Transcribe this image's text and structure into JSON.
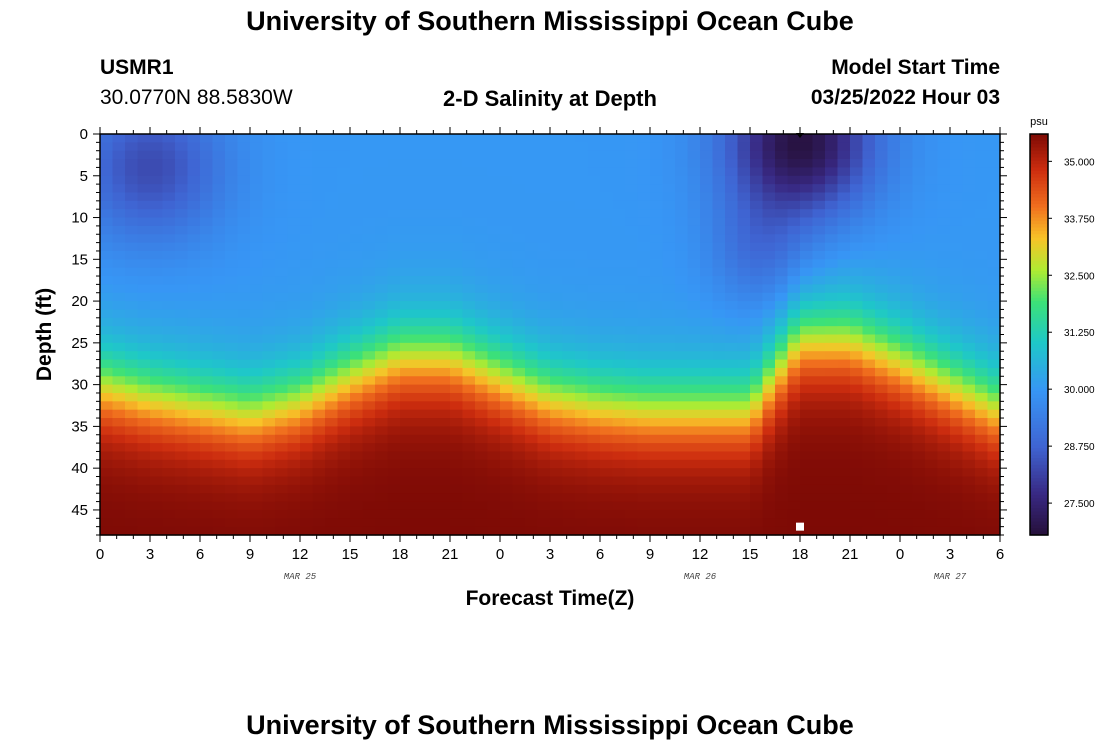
{
  "header": {
    "title": "University of Southern Mississippi Ocean Cube",
    "station": "USMR1",
    "coords": "30.0770N  88.5830W",
    "plot_title": "2-D Salinity at Depth",
    "model_label": "Model Start Time",
    "model_time": "03/25/2022 Hour 03"
  },
  "footer": {
    "title": "University of Southern Mississippi Ocean Cube"
  },
  "chart_data": {
    "type": "heatmap",
    "title": "2-D Salinity at Depth",
    "xlabel": "Forecast Time(Z)",
    "ylabel": "Depth (ft)",
    "x_start_hour": 0,
    "x_end_hour": 54,
    "x_tick_step_hours": 3,
    "x_tick_labels": [
      "0",
      "3",
      "6",
      "9",
      "12",
      "15",
      "18",
      "21",
      "0",
      "3",
      "6",
      "9",
      "12",
      "15",
      "18",
      "21",
      "0",
      "3",
      "6"
    ],
    "date_labels": [
      {
        "label": "MAR 25",
        "hour": 12
      },
      {
        "label": "MAR 26",
        "hour": 36
      },
      {
        "label": "MAR 27",
        "hour": 51
      }
    ],
    "ylim": [
      0,
      48
    ],
    "y_ticks": [
      0,
      5,
      10,
      15,
      20,
      25,
      30,
      35,
      40,
      45
    ],
    "colorbar": {
      "unit": "psu",
      "min": 26.8,
      "max": 35.6,
      "ticks": [
        "35.000",
        "33.750",
        "32.500",
        "31.250",
        "30.000",
        "28.750",
        "27.500"
      ]
    },
    "halocline_depth_ft": {
      "hours": [
        0,
        3,
        6,
        9,
        12,
        15,
        18,
        21,
        24,
        27,
        30,
        33,
        36,
        39,
        42,
        45,
        48,
        51,
        54
      ],
      "depth": [
        30,
        31.5,
        32.5,
        33.5,
        32,
        29,
        26.5,
        26.5,
        29,
        31.5,
        32.5,
        33,
        33,
        33,
        24.5,
        24.5,
        27,
        30,
        33
      ]
    },
    "surface_fresh_pools": [
      {
        "hour": 3,
        "depth_ft": 4,
        "min_psu": 28.3
      },
      {
        "hour": 42,
        "depth_ft": 1,
        "min_psu": 26.9
      }
    ],
    "markers": [
      {
        "hour": 42,
        "depth_ft": 0,
        "shape": "triangle"
      },
      {
        "hour": 42,
        "depth_ft": 47,
        "shape": "square"
      }
    ]
  }
}
